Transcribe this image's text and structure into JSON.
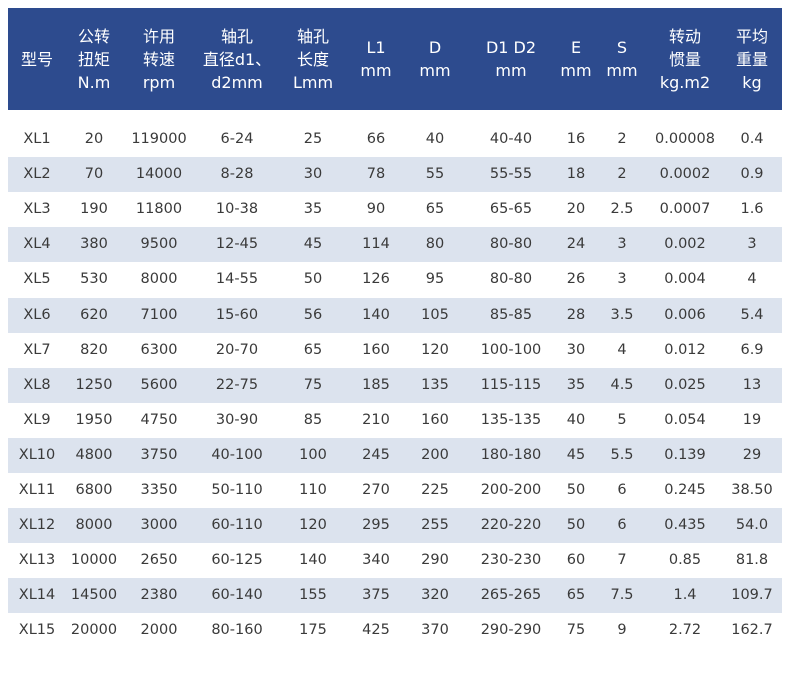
{
  "table": {
    "header": [
      [
        "型号"
      ],
      [
        "公转",
        "扭矩",
        "N.m"
      ],
      [
        "许用",
        "转速",
        "rpm"
      ],
      [
        "轴孔",
        "直径d1、",
        "d2mm"
      ],
      [
        "轴孔",
        "长度",
        "Lmm"
      ],
      [
        "L1",
        "mm"
      ],
      [
        "D",
        "mm"
      ],
      [
        "D1 D2",
        "mm"
      ],
      [
        "E",
        "mm"
      ],
      [
        "S",
        "mm"
      ],
      [
        "转动",
        "惯量",
        "kg.m2"
      ],
      [
        "平均",
        "重量",
        "kg"
      ]
    ],
    "rows": [
      [
        "XL1",
        "20",
        "119000",
        "6-24",
        "25",
        "66",
        "40",
        "40-40",
        "16",
        "2",
        "0.00008",
        "0.4"
      ],
      [
        "XL2",
        "70",
        "14000",
        "8-28",
        "30",
        "78",
        "55",
        "55-55",
        "18",
        "2",
        "0.0002",
        "0.9"
      ],
      [
        "XL3",
        "190",
        "11800",
        "10-38",
        "35",
        "90",
        "65",
        "65-65",
        "20",
        "2.5",
        "0.0007",
        "1.6"
      ],
      [
        "XL4",
        "380",
        "9500",
        "12-45",
        "45",
        "114",
        "80",
        "80-80",
        "24",
        "3",
        "0.002",
        "3"
      ],
      [
        "XL5",
        "530",
        "8000",
        "14-55",
        "50",
        "126",
        "95",
        "80-80",
        "26",
        "3",
        "0.004",
        "4"
      ],
      [
        "XL6",
        "620",
        "7100",
        "15-60",
        "56",
        "140",
        "105",
        "85-85",
        "28",
        "3.5",
        "0.006",
        "5.4"
      ],
      [
        "XL7",
        "820",
        "6300",
        "20-70",
        "65",
        "160",
        "120",
        "100-100",
        "30",
        "4",
        "0.012",
        "6.9"
      ],
      [
        "XL8",
        "1250",
        "5600",
        "22-75",
        "75",
        "185",
        "135",
        "115-115",
        "35",
        "4.5",
        "0.025",
        "13"
      ],
      [
        "XL9",
        "1950",
        "4750",
        "30-90",
        "85",
        "210",
        "160",
        "135-135",
        "40",
        "5",
        "0.054",
        "19"
      ],
      [
        "XL10",
        "4800",
        "3750",
        "40-100",
        "100",
        "245",
        "200",
        "180-180",
        "45",
        "5.5",
        "0.139",
        "29"
      ],
      [
        "XL11",
        "6800",
        "3350",
        "50-110",
        "110",
        "270",
        "225",
        "200-200",
        "50",
        "6",
        "0.245",
        "38.50"
      ],
      [
        "XL12",
        "8000",
        "3000",
        "60-110",
        "120",
        "295",
        "255",
        "220-220",
        "50",
        "6",
        "0.435",
        "54.0"
      ],
      [
        "XL13",
        "10000",
        "2650",
        "60-125",
        "140",
        "340",
        "290",
        "230-230",
        "60",
        "7",
        "0.85",
        "81.8"
      ],
      [
        "XL14",
        "14500",
        "2380",
        "60-140",
        "155",
        "375",
        "320",
        "265-265",
        "65",
        "7.5",
        "1.4",
        "109.7"
      ],
      [
        "XL15",
        "20000",
        "2000",
        "80-160",
        "175",
        "425",
        "370",
        "290-290",
        "75",
        "9",
        "2.72",
        "162.7"
      ]
    ]
  }
}
